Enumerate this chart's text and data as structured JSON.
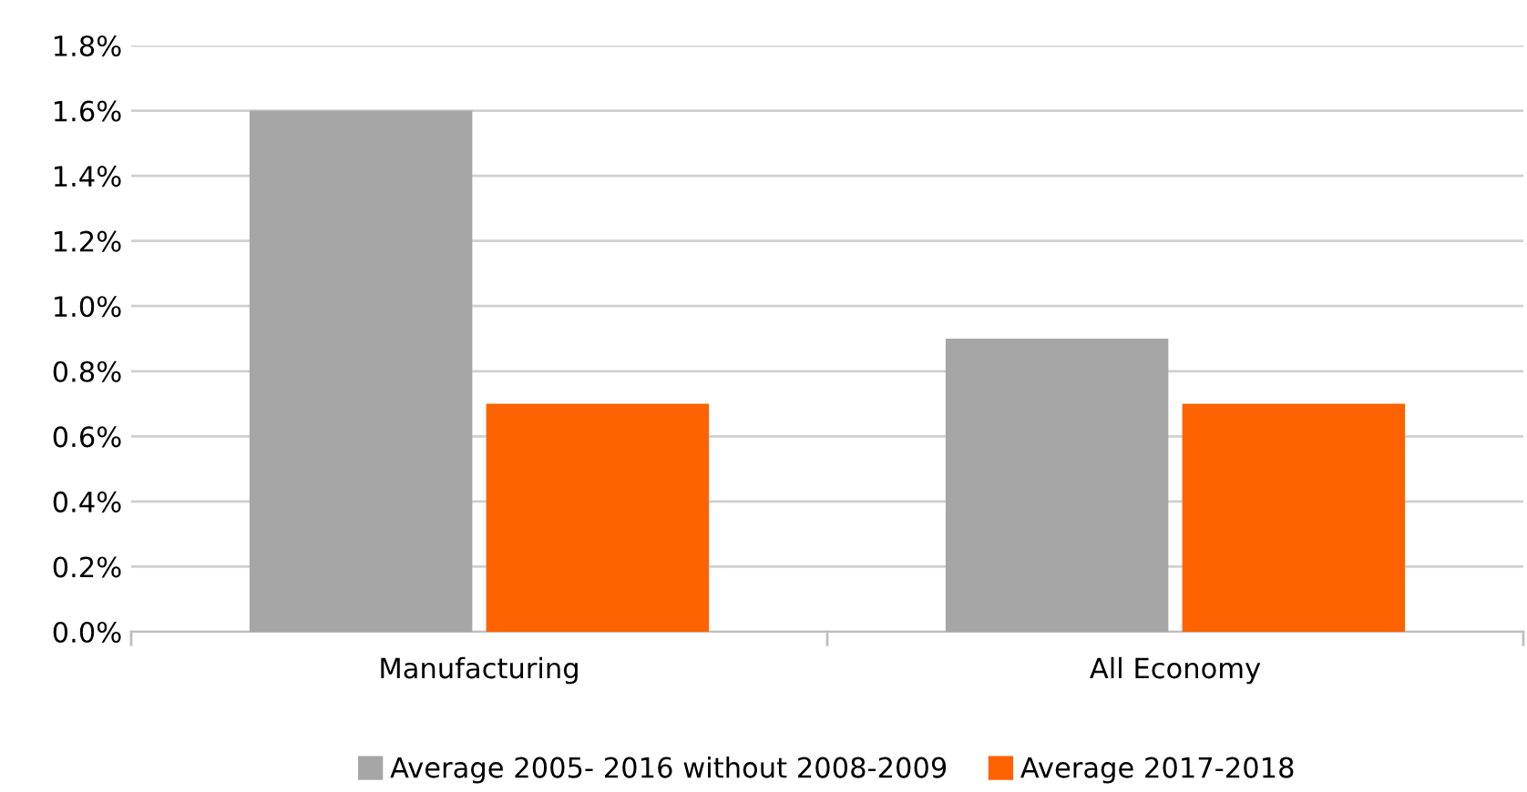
{
  "chart_data": {
    "type": "bar",
    "categories": [
      "Manufacturing",
      "All Economy"
    ],
    "series": [
      {
        "name": "Average 2005- 2016 without 2008-2009",
        "color": "#a6a6a6",
        "values": [
          1.6,
          0.9
        ]
      },
      {
        "name": "Average 2017-2018",
        "color": "#ff6200",
        "values": [
          0.7,
          0.7
        ]
      }
    ],
    "ylim": [
      0,
      1.8
    ],
    "yticks": [
      {
        "value": 0,
        "label": "0.0%"
      },
      {
        "value": 0.2,
        "label": "0.2%"
      },
      {
        "value": 0.4,
        "label": "0.4%"
      },
      {
        "value": 0.6,
        "label": "0.6%"
      },
      {
        "value": 0.8,
        "label": "0.8%"
      },
      {
        "value": 1.0,
        "label": "1.0%"
      },
      {
        "value": 1.2,
        "label": "1.2%"
      },
      {
        "value": 1.4,
        "label": "1.4%"
      },
      {
        "value": 1.6,
        "label": "1.6%"
      },
      {
        "value": 1.8,
        "label": "1.8%"
      }
    ],
    "grid": "y",
    "legend": "bottom"
  }
}
